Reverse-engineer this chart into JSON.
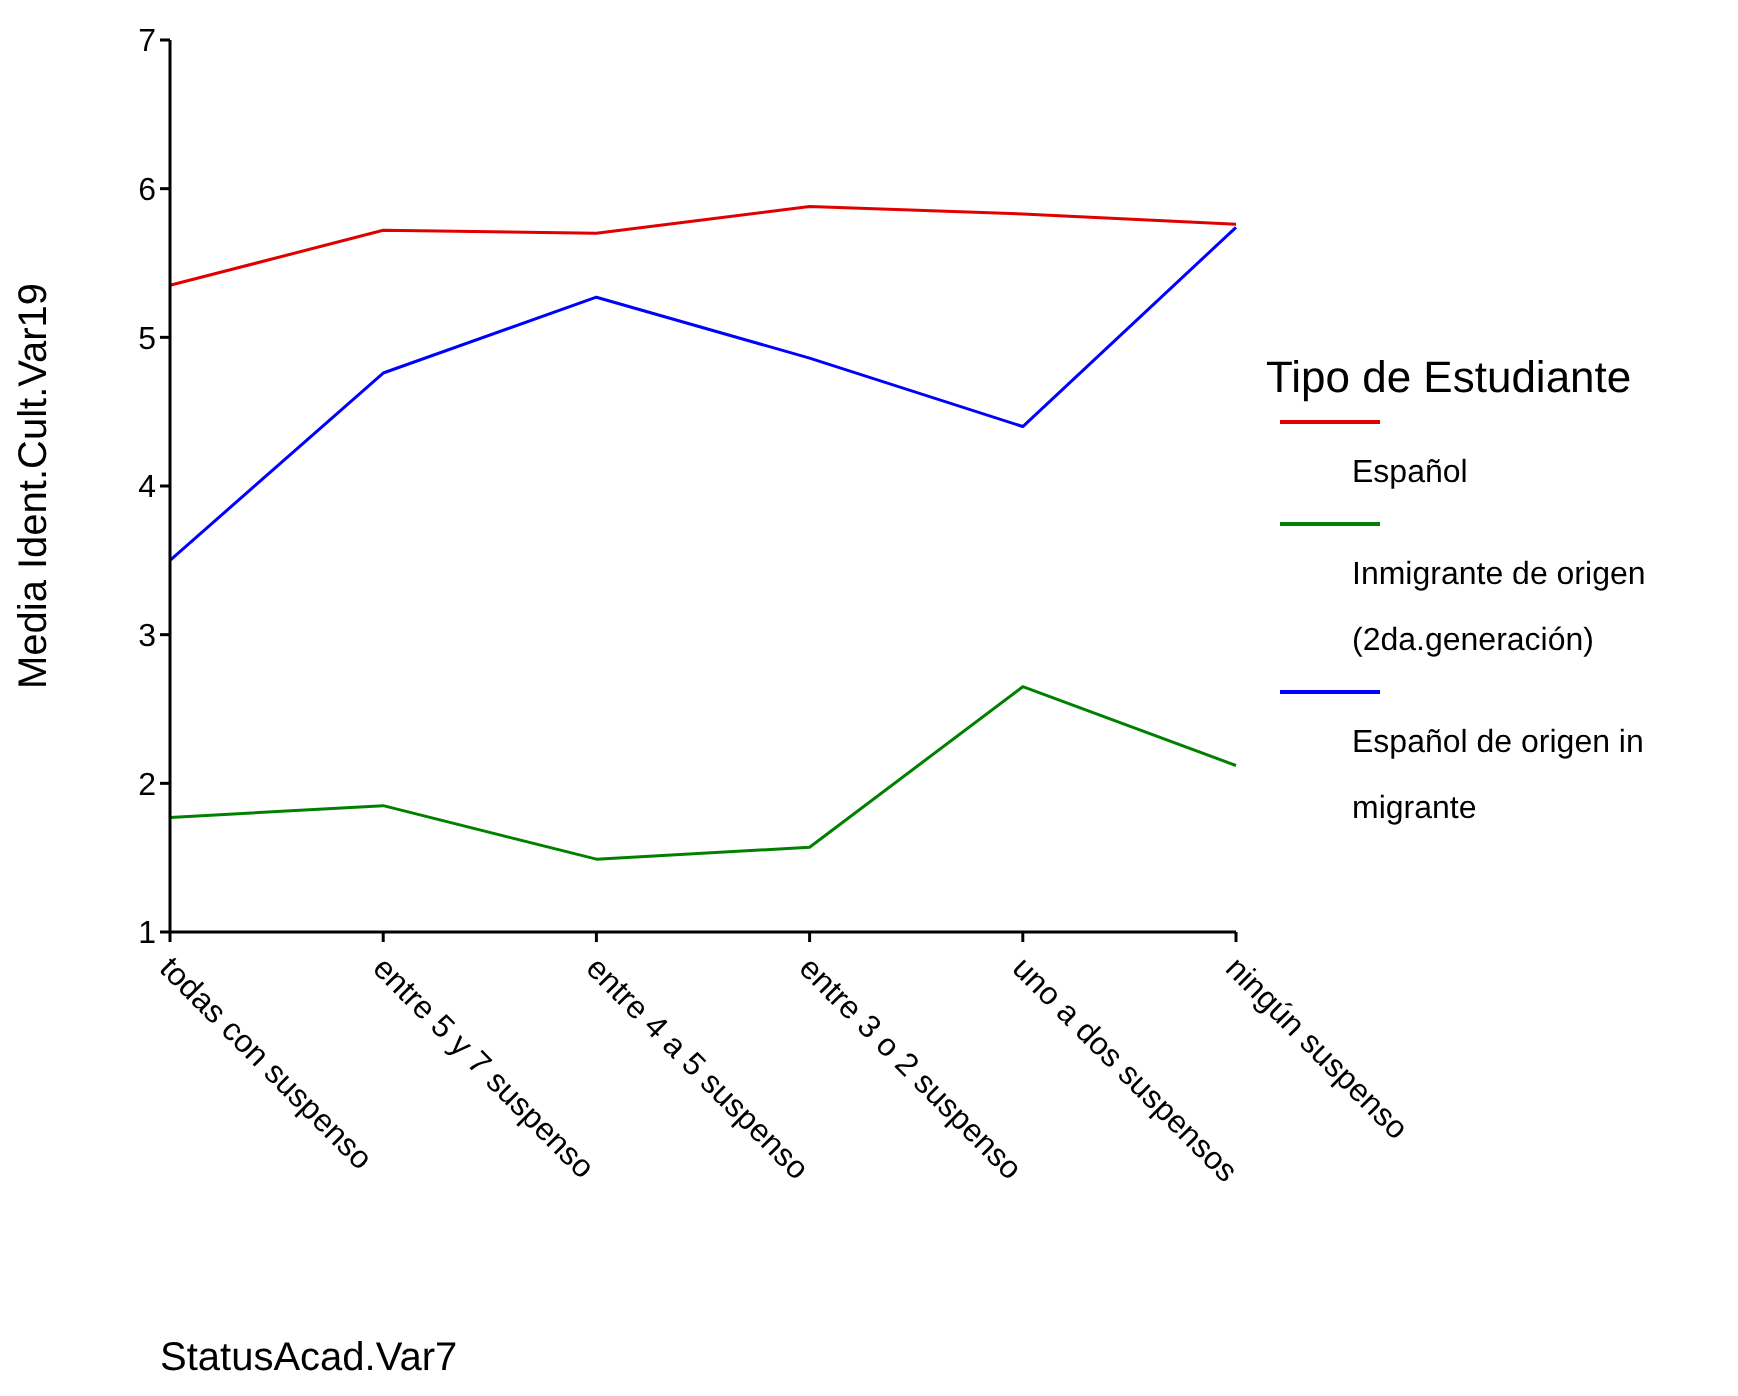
{
  "chart_data": {
    "type": "line",
    "xlabel": "StatusAcad.Var7",
    "ylabel": "Media Ident.Cult.Var19",
    "legend_title": "Tipo de Estudiante",
    "legend": "right",
    "categories": [
      "todas con suspenso",
      "entre 5 y 7 suspenso",
      "entre 4 a 5 suspenso",
      "entre 3 o 2 suspenso",
      "uno a dos suspensos",
      "ningún suspenso"
    ],
    "series": [
      {
        "name": "Español",
        "color": "#e00000",
        "values": [
          5.35,
          5.72,
          5.7,
          5.88,
          5.83,
          5.76
        ]
      },
      {
        "name": "Inmigrante de origen (2da.generación)",
        "color": "#008000",
        "values": [
          1.77,
          1.85,
          1.49,
          1.57,
          2.65,
          2.12
        ]
      },
      {
        "name": "Español de origen in migrante",
        "color": "#0000ff",
        "values": [
          3.5,
          4.76,
          5.27,
          4.86,
          4.4,
          5.74
        ]
      }
    ],
    "ylim": [
      1,
      7
    ],
    "yticks": [
      1,
      2,
      3,
      4,
      5,
      6,
      7
    ],
    "marker": "none",
    "line_style": "solid"
  }
}
